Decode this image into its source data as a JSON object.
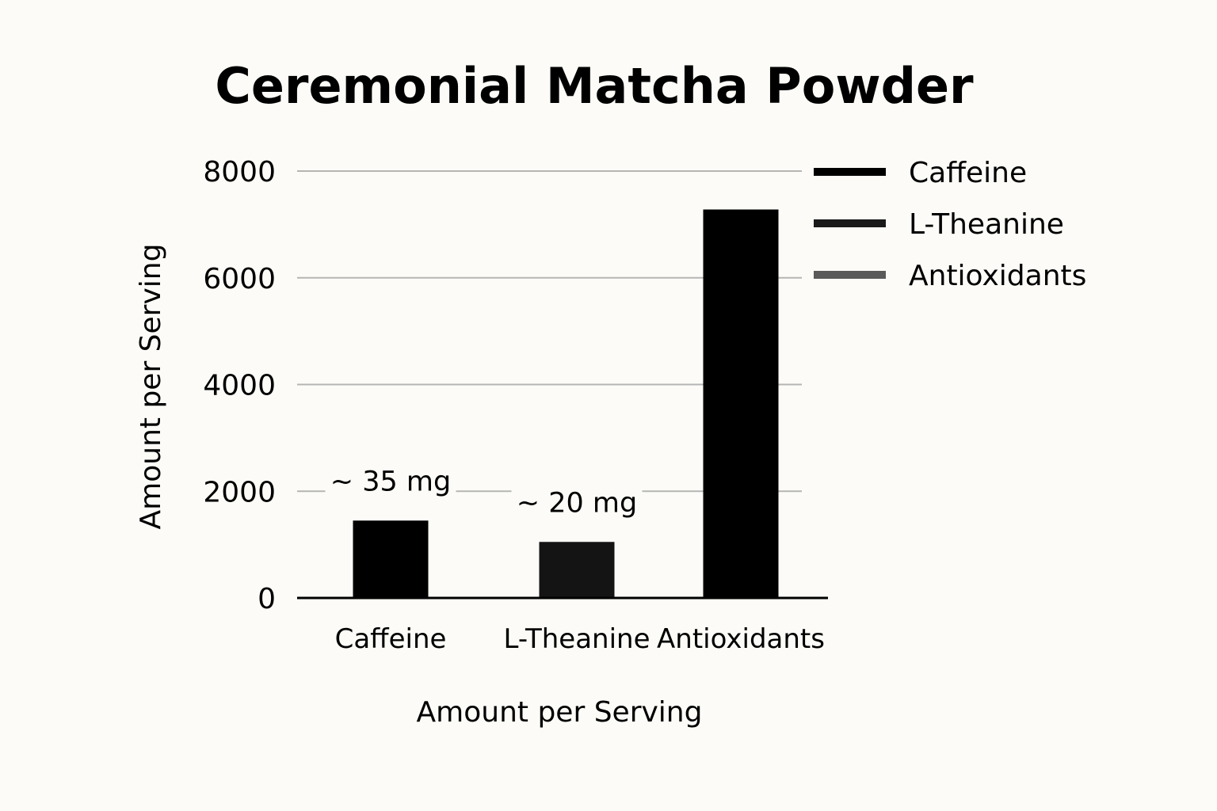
{
  "chart_data": {
    "type": "bar",
    "title": "Ceremonial Matcha Powder",
    "xlabel": "Amount per Serving",
    "ylabel": "Amount per Serving",
    "categories": [
      "Caffeine",
      "L-Theanine",
      "Antioxidants"
    ],
    "values": [
      1450,
      1050,
      7280
    ],
    "data_labels": [
      "~ 35 mg",
      "~ 20 mg",
      ""
    ],
    "bar_colors": [
      "#000000",
      "#141414",
      "#000000"
    ],
    "ylim": [
      0,
      8000
    ],
    "yticks": [
      0,
      2000,
      4000,
      6000,
      8000
    ],
    "grid": true,
    "legend": {
      "position": "top-right",
      "entries": [
        {
          "label": "Caffeine",
          "color": "#000000"
        },
        {
          "label": "L-Theanine",
          "color": "#1a1a1a"
        },
        {
          "label": "Antioxidants",
          "color": "#5a5a5a"
        }
      ]
    }
  }
}
